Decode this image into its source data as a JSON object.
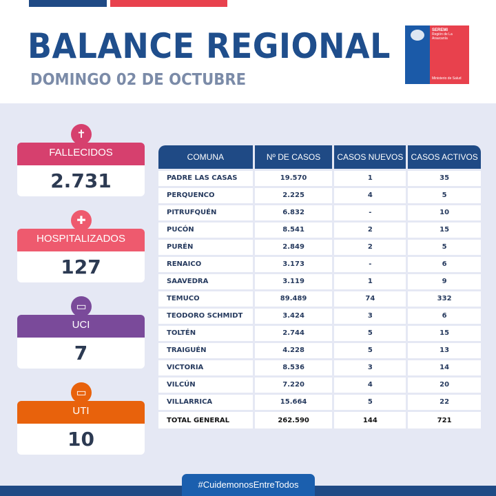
{
  "header": {
    "title": "BALANCE REGIONAL",
    "subtitle": "DOMINGO 02 DE OCTUBRE"
  },
  "logo": {
    "org": "SEREMI",
    "region": "Región de La Araucanía",
    "ministry": "Ministerio de Salud"
  },
  "colors": {
    "brand_blue": "#1f4a85",
    "fallecidos": "#d6406e",
    "hospitalizados": "#ee5a6e",
    "uci": "#7a4a9a",
    "uti": "#e8620c",
    "background": "#e5e8f4"
  },
  "stats": [
    {
      "label": "FALLECIDOS",
      "value": "2.731",
      "icon": "tombstone-icon"
    },
    {
      "label": "HOSPITALIZADOS",
      "value": "127",
      "icon": "medical-cross-icon"
    },
    {
      "label": "UCI",
      "value": "7",
      "icon": "monitor-icon"
    },
    {
      "label": "UTI",
      "value": "10",
      "icon": "monitor-icon"
    }
  ],
  "table": {
    "columns": [
      "COMUNA",
      "Nº DE CASOS",
      "CASOS NUEVOS",
      "CASOS ACTIVOS"
    ],
    "rows": [
      [
        "PADRE LAS CASAS",
        "19.570",
        "1",
        "35"
      ],
      [
        "PERQUENCO",
        "2.225",
        "4",
        "5"
      ],
      [
        "PITRUFQUÉN",
        "6.832",
        "-",
        "10"
      ],
      [
        "PUCÓN",
        "8.541",
        "2",
        "15"
      ],
      [
        "PURÉN",
        "2.849",
        "2",
        "5"
      ],
      [
        "RENAICO",
        "3.173",
        "-",
        "6"
      ],
      [
        "SAAVEDRA",
        "3.119",
        "1",
        "9"
      ],
      [
        "TEMUCO",
        "89.489",
        "74",
        "332"
      ],
      [
        "TEODORO SCHMIDT",
        "3.424",
        "3",
        "6"
      ],
      [
        "TOLTÉN",
        "2.744",
        "5",
        "15"
      ],
      [
        "TRAIGUÉN",
        "4.228",
        "5",
        "13"
      ],
      [
        "VICTORIA",
        "8.536",
        "3",
        "14"
      ],
      [
        "VILCÚN",
        "7.220",
        "4",
        "20"
      ],
      [
        "VILLARRICA",
        "15.664",
        "5",
        "22"
      ]
    ],
    "total": [
      "TOTAL GENERAL",
      "262.590",
      "144",
      "721"
    ]
  },
  "footer": {
    "hashtag": "#CuidemonosEntreTodos"
  }
}
